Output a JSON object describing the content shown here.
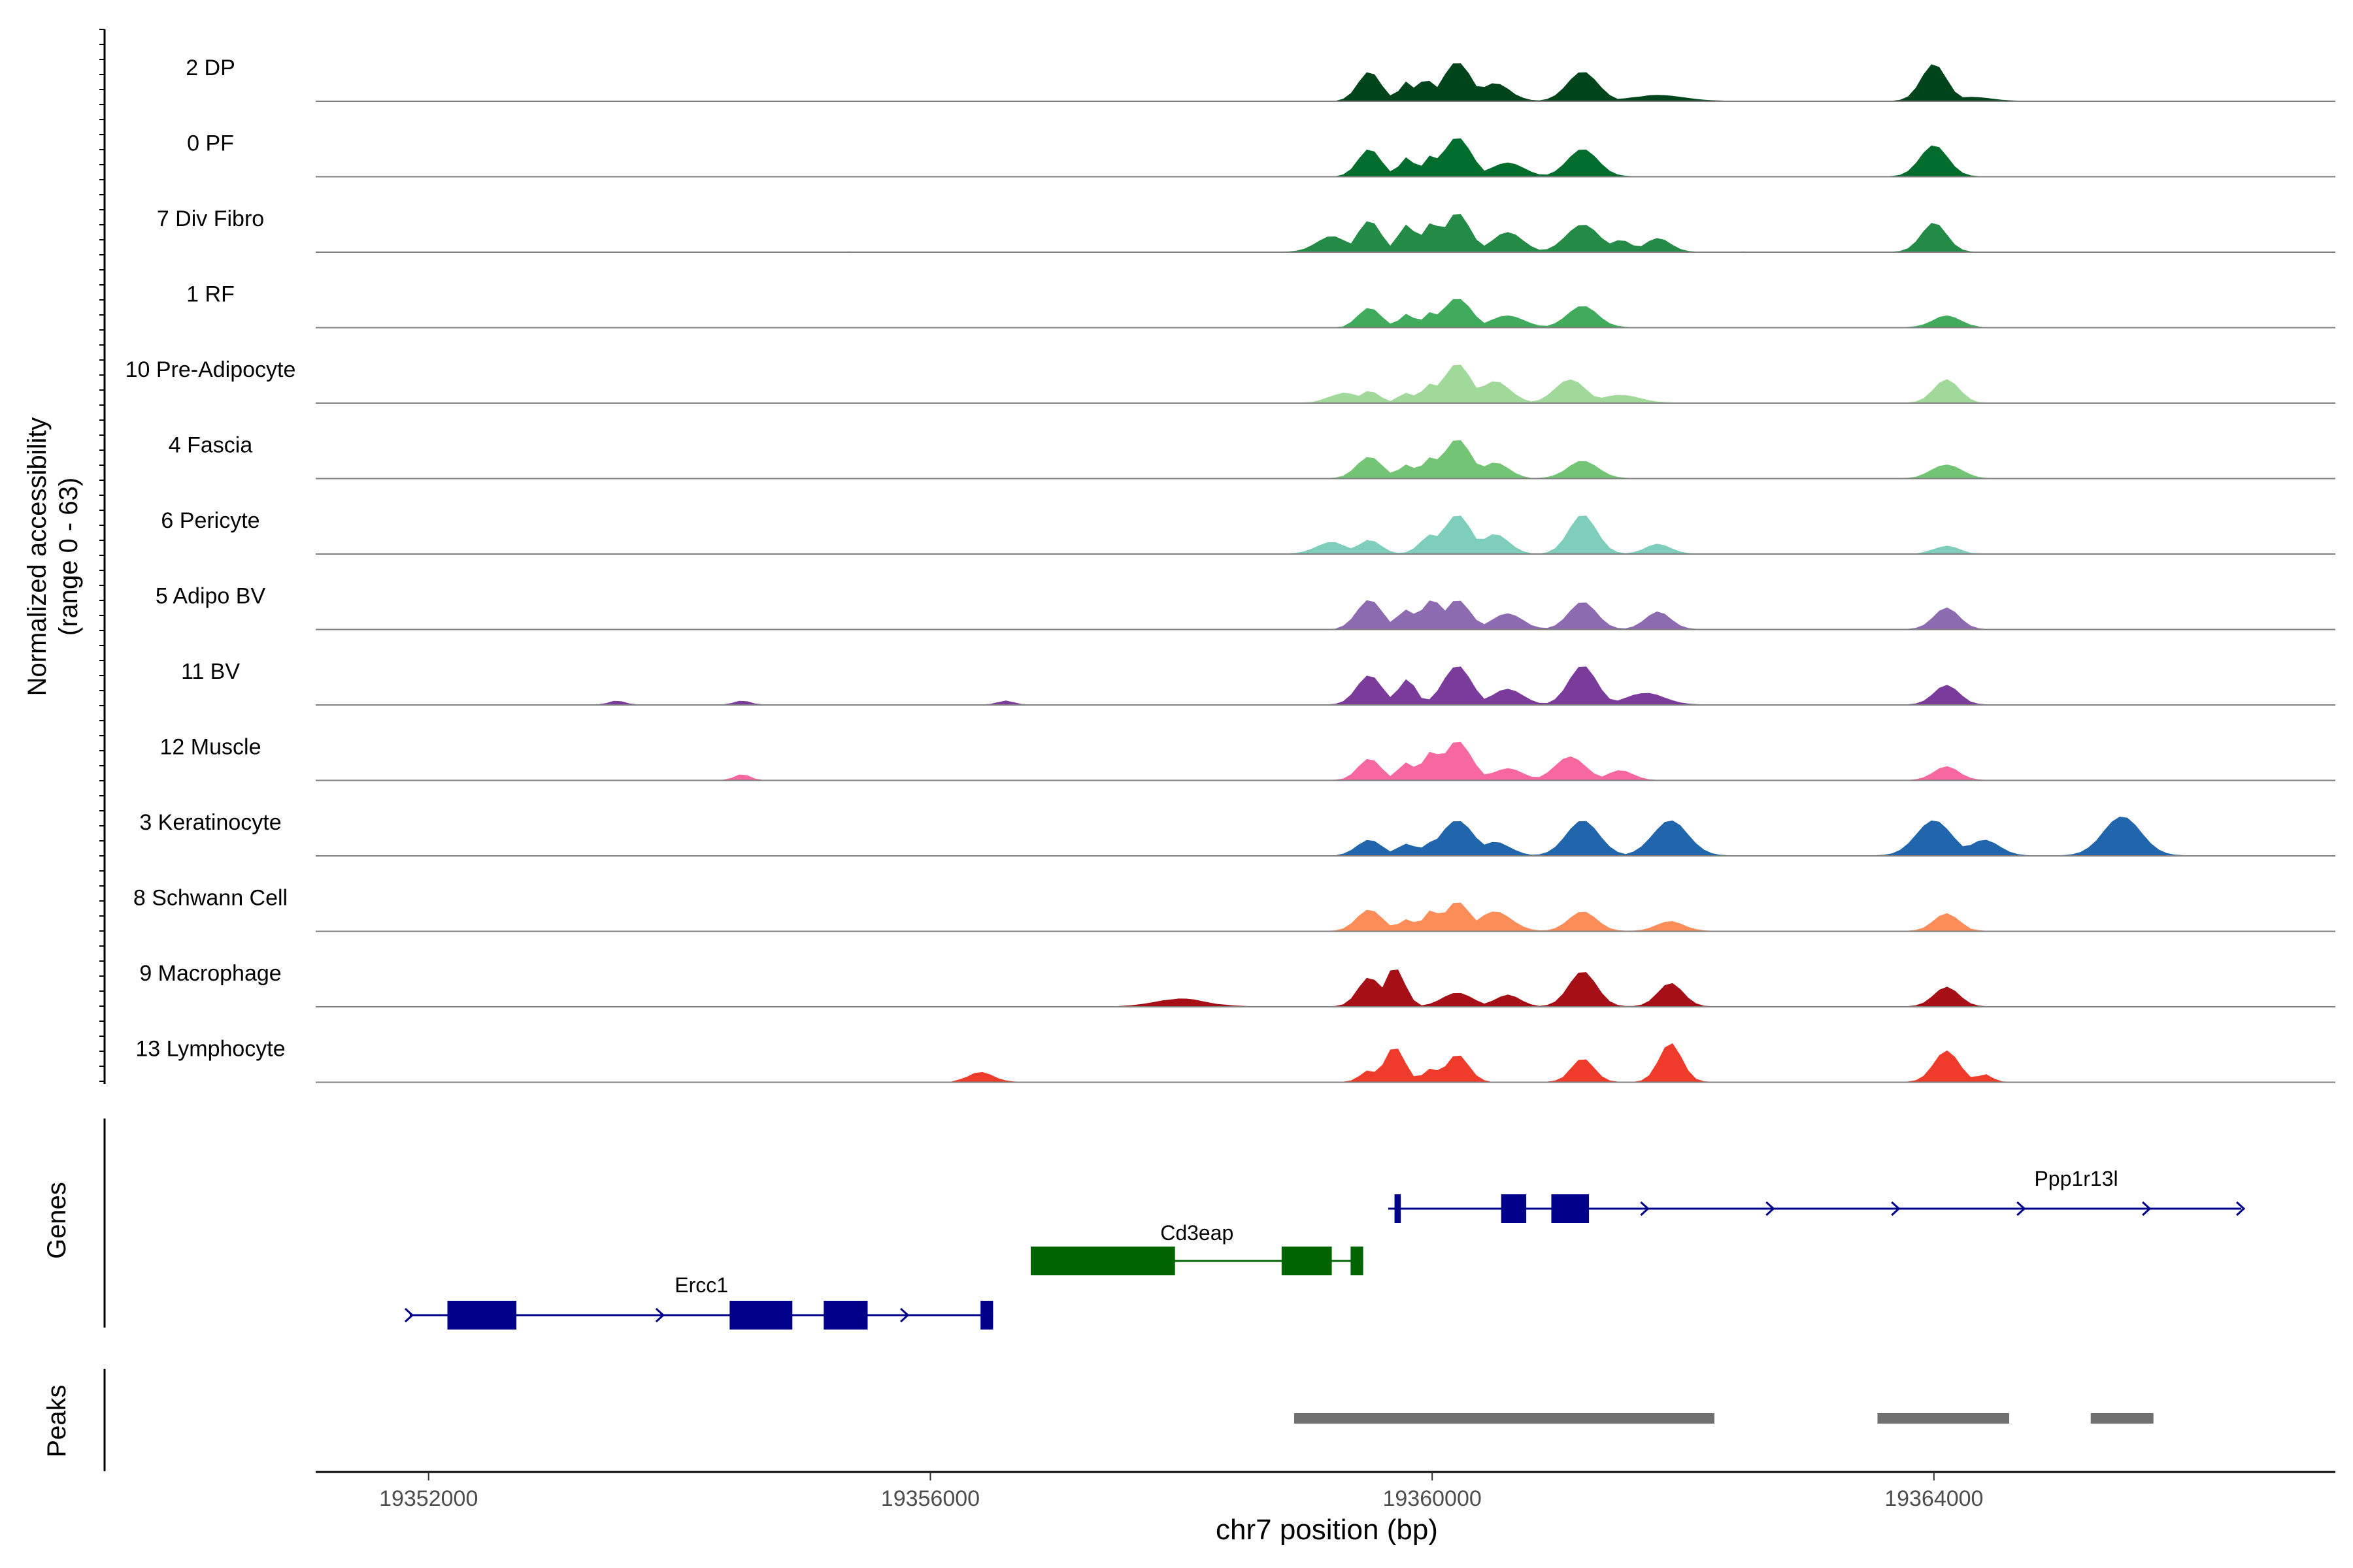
{
  "chart_data": {
    "type": "area",
    "y_axis_label": [
      "Normalized accessibility",
      "(range 0 - 63)"
    ],
    "y_range": [
      0,
      63
    ],
    "x_axis": {
      "label": "chr7 position (bp)",
      "range": [
        19351100,
        19367200
      ],
      "ticks": [
        19352000,
        19356000,
        19360000,
        19364000
      ],
      "tick_labels": [
        "19352000",
        "19356000",
        "19360000",
        "19364000"
      ]
    },
    "tracks": [
      {
        "name": "2 DP",
        "color": "#00441b",
        "baseline": 0.15,
        "noise": [
          19352000,
          19366500
        ],
        "peaks": [
          [
            19359500,
            0.75,
            90
          ],
          [
            19359800,
            0.5,
            60
          ],
          [
            19359950,
            0.55,
            70
          ],
          [
            19360200,
            1.0,
            110
          ],
          [
            19360500,
            0.45,
            120
          ],
          [
            19361200,
            0.75,
            120
          ],
          [
            19361800,
            0.15,
            200
          ],
          [
            19364000,
            0.95,
            100
          ],
          [
            19364300,
            0.1,
            150
          ]
        ]
      },
      {
        "name": "0 PF",
        "color": "#006d2c",
        "baseline": 0.12,
        "noise": [
          19352000,
          19367000
        ],
        "peaks": [
          [
            19359500,
            0.7,
            90
          ],
          [
            19359800,
            0.5,
            60
          ],
          [
            19360000,
            0.55,
            70
          ],
          [
            19360200,
            1.0,
            110
          ],
          [
            19360600,
            0.35,
            130
          ],
          [
            19361200,
            0.7,
            120
          ],
          [
            19364000,
            0.8,
            110
          ]
        ]
      },
      {
        "name": "7 Div Fibro",
        "color": "#238b45",
        "baseline": 0.18,
        "noise": [
          19351900,
          19367000
        ],
        "peaks": [
          [
            19359200,
            0.4,
            120
          ],
          [
            19359500,
            0.8,
            90
          ],
          [
            19359800,
            0.7,
            70
          ],
          [
            19360000,
            0.75,
            80
          ],
          [
            19360200,
            1.0,
            100
          ],
          [
            19360600,
            0.5,
            120
          ],
          [
            19361200,
            0.7,
            130
          ],
          [
            19361500,
            0.3,
            100
          ],
          [
            19361800,
            0.35,
            100
          ],
          [
            19364000,
            0.75,
            100
          ]
        ]
      },
      {
        "name": "1 RF",
        "color": "#41ab5d",
        "baseline": 0.1,
        "noise": [
          19351900,
          19366300
        ],
        "peaks": [
          [
            19359500,
            0.5,
            90
          ],
          [
            19359800,
            0.35,
            60
          ],
          [
            19360000,
            0.4,
            70
          ],
          [
            19360200,
            0.75,
            110
          ],
          [
            19360600,
            0.3,
            130
          ],
          [
            19361200,
            0.55,
            120
          ],
          [
            19364100,
            0.3,
            110
          ]
        ]
      },
      {
        "name": "10 Pre-Adipocyte",
        "color": "#a1d99b",
        "baseline": 0.15,
        "noise": [
          19351900,
          19367000
        ],
        "peaks": [
          [
            19359300,
            0.25,
            120
          ],
          [
            19359500,
            0.3,
            80
          ],
          [
            19359800,
            0.25,
            70
          ],
          [
            19360000,
            0.5,
            80
          ],
          [
            19360200,
            1.0,
            110
          ],
          [
            19360500,
            0.55,
            120
          ],
          [
            19361100,
            0.6,
            120
          ],
          [
            19361500,
            0.2,
            150
          ],
          [
            19364100,
            0.6,
            100
          ]
        ]
      },
      {
        "name": "4 Fascia",
        "color": "#74c476",
        "baseline": 0.12,
        "noise": [
          19351900,
          19367000
        ],
        "peaks": [
          [
            19359500,
            0.55,
            100
          ],
          [
            19359800,
            0.35,
            70
          ],
          [
            19360000,
            0.55,
            80
          ],
          [
            19360200,
            1.0,
            110
          ],
          [
            19360500,
            0.4,
            110
          ],
          [
            19361200,
            0.45,
            120
          ],
          [
            19364100,
            0.35,
            120
          ]
        ]
      },
      {
        "name": "6 Pericyte",
        "color": "#7fcdbb",
        "baseline": 0.1,
        "noise": [
          19351900,
          19367000
        ],
        "peaks": [
          [
            19359200,
            0.3,
            120
          ],
          [
            19359500,
            0.35,
            90
          ],
          [
            19360000,
            0.5,
            90
          ],
          [
            19360200,
            1.0,
            110
          ],
          [
            19360500,
            0.5,
            110
          ],
          [
            19361200,
            1.0,
            110
          ],
          [
            19361800,
            0.25,
            100
          ],
          [
            19364100,
            0.2,
            100
          ]
        ]
      },
      {
        "name": "5 Adipo BV",
        "color": "#8c6bb1",
        "baseline": 0.1,
        "noise": [
          19351900,
          19367000
        ],
        "peaks": [
          [
            19359500,
            0.75,
            100
          ],
          [
            19359800,
            0.5,
            80
          ],
          [
            19360000,
            0.75,
            90
          ],
          [
            19360200,
            0.75,
            100
          ],
          [
            19360600,
            0.4,
            120
          ],
          [
            19361200,
            0.7,
            110
          ],
          [
            19361800,
            0.45,
            100
          ],
          [
            19364100,
            0.55,
            100
          ]
        ]
      },
      {
        "name": "11 BV",
        "color": "#7a3b9a",
        "baseline": 0.12,
        "noise": [
          19352000,
          19366500
        ],
        "peaks": [
          [
            19353500,
            0.1,
            60
          ],
          [
            19354500,
            0.1,
            60
          ],
          [
            19356600,
            0.1,
            60
          ],
          [
            19359500,
            0.75,
            100
          ],
          [
            19359800,
            0.65,
            70
          ],
          [
            19360200,
            1.0,
            110
          ],
          [
            19360600,
            0.4,
            120
          ],
          [
            19361200,
            1.0,
            110
          ],
          [
            19361700,
            0.3,
            150
          ],
          [
            19364100,
            0.5,
            100
          ]
        ]
      },
      {
        "name": "12 Muscle",
        "color": "#f768a1",
        "baseline": 0.12,
        "noise": [
          19352200,
          19366000
        ],
        "peaks": [
          [
            19354500,
            0.15,
            60
          ],
          [
            19359500,
            0.55,
            90
          ],
          [
            19359800,
            0.45,
            70
          ],
          [
            19360000,
            0.75,
            80
          ],
          [
            19360200,
            1.0,
            110
          ],
          [
            19360600,
            0.3,
            120
          ],
          [
            19361100,
            0.6,
            120
          ],
          [
            19361500,
            0.25,
            100
          ],
          [
            19364100,
            0.35,
            100
          ]
        ]
      },
      {
        "name": "3 Keratinocyte",
        "color": "#2166ac",
        "baseline": 0.12,
        "noise": [
          19351900,
          19367000
        ],
        "peaks": [
          [
            19359500,
            0.4,
            100
          ],
          [
            19359800,
            0.3,
            80
          ],
          [
            19360000,
            0.35,
            80
          ],
          [
            19360200,
            0.9,
            130
          ],
          [
            19360500,
            0.35,
            120
          ],
          [
            19361200,
            0.9,
            130
          ],
          [
            19361900,
            0.9,
            140
          ],
          [
            19364000,
            0.9,
            140
          ],
          [
            19364400,
            0.4,
            120
          ],
          [
            19365500,
            1.0,
            150
          ]
        ]
      },
      {
        "name": "8 Schwann Cell",
        "color": "#fc8d59",
        "baseline": 0.12,
        "noise": [
          19351900,
          19366500
        ],
        "peaks": [
          [
            19359500,
            0.55,
            100
          ],
          [
            19359800,
            0.3,
            70
          ],
          [
            19360000,
            0.55,
            70
          ],
          [
            19360200,
            0.75,
            100
          ],
          [
            19360500,
            0.5,
            130
          ],
          [
            19361200,
            0.5,
            110
          ],
          [
            19361900,
            0.25,
            110
          ],
          [
            19364100,
            0.45,
            100
          ]
        ]
      },
      {
        "name": "9 Macrophage",
        "color": "#a50f15",
        "baseline": 0.12,
        "noise": [
          19351900,
          19366200
        ],
        "peaks": [
          [
            19358000,
            0.2,
            200
          ],
          [
            19359500,
            0.75,
            90
          ],
          [
            19359700,
            1.0,
            80
          ],
          [
            19360200,
            0.35,
            120
          ],
          [
            19360600,
            0.3,
            100
          ],
          [
            19361200,
            0.9,
            110
          ],
          [
            19361900,
            0.6,
            100
          ],
          [
            19364100,
            0.5,
            100
          ]
        ]
      },
      {
        "name": "13 Lymphocyte",
        "color": "#ef3b2c",
        "baseline": 0.1,
        "noise": [
          19356200,
          19366000
        ],
        "peaks": [
          [
            19356400,
            0.25,
            100
          ],
          [
            19359700,
            0.9,
            80
          ],
          [
            19359500,
            0.3,
            70
          ],
          [
            19360200,
            0.7,
            90
          ],
          [
            19360000,
            0.35,
            70
          ],
          [
            19361200,
            0.6,
            90
          ],
          [
            19361900,
            1.0,
            90
          ],
          [
            19364100,
            0.8,
            100
          ],
          [
            19364400,
            0.2,
            60
          ]
        ]
      }
    ],
    "genes_label": "Genes",
    "genes": [
      {
        "name": "Ercc1",
        "color": "#00008b",
        "start": 19351850,
        "end": 19356500,
        "row": 0,
        "exons": [
          [
            19352150,
            19352700
          ],
          [
            19354400,
            19354900
          ],
          [
            19355150,
            19355500
          ],
          [
            19356400,
            19356500
          ]
        ],
        "arrows": [
          19351850,
          19353850,
          19355800
        ]
      },
      {
        "name": "Cd3eap",
        "color": "#006400",
        "start": 19356800,
        "end": 19359450,
        "row": 1,
        "exons": [
          [
            19356800,
            19357950
          ],
          [
            19358800,
            19359200
          ],
          [
            19359350,
            19359450
          ]
        ],
        "arrows": []
      },
      {
        "name": "Ppp1r13l",
        "color": "#00008b",
        "start": 19359650,
        "end": 19366450,
        "row": 2,
        "exons": [
          [
            19359700,
            19359750
          ],
          [
            19360550,
            19360750
          ],
          [
            19360950,
            19361250
          ]
        ],
        "arrows": [
          19361700,
          19362700,
          19363700,
          19364700,
          19365700,
          19366450
        ]
      }
    ],
    "peaks_label": "Peaks",
    "peaks": [
      [
        19358900,
        19362250
      ],
      [
        19363550,
        19364600
      ],
      [
        19365250,
        19365750
      ]
    ]
  }
}
